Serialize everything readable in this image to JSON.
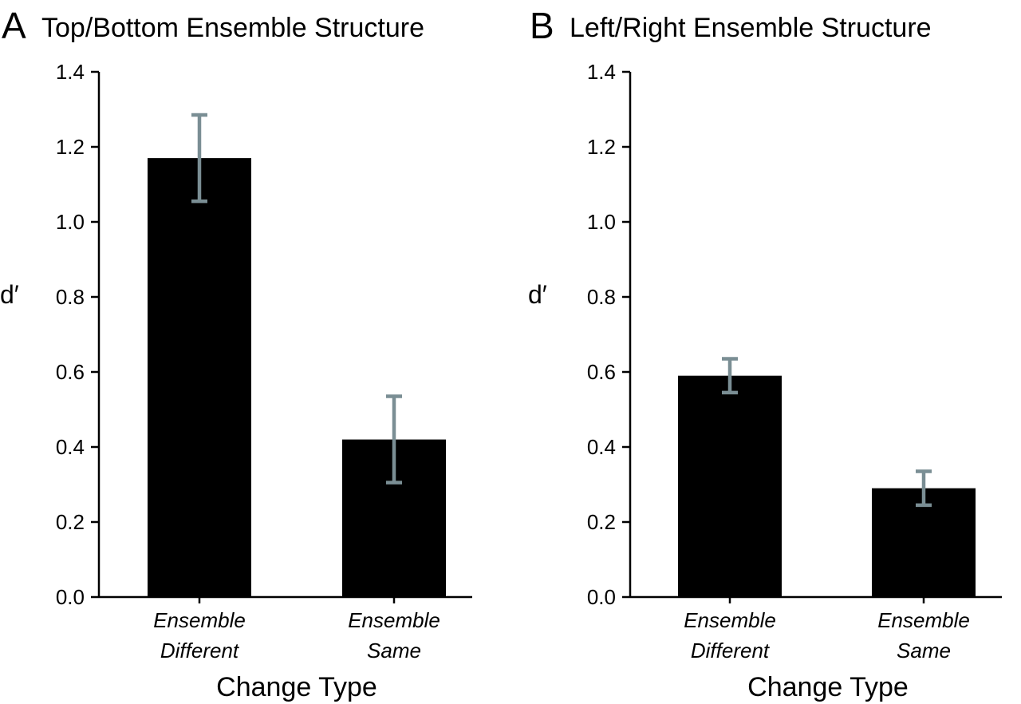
{
  "chart_data": [
    {
      "type": "bar",
      "panel": "A",
      "title": "Top/Bottom Ensemble Structure",
      "xlabel": "Change Type",
      "ylabel": "d′",
      "ylim": [
        0,
        1.4
      ],
      "yticks": [
        "0.0",
        "0.2",
        "0.4",
        "0.6",
        "0.8",
        "1.0",
        "1.2",
        "1.4"
      ],
      "categories": [
        {
          "line1": "Ensemble",
          "line2": "Different"
        },
        {
          "line1": "Ensemble",
          "line2": "Same"
        }
      ],
      "values": [
        1.17,
        0.42
      ],
      "error_low": [
        1.055,
        0.305
      ],
      "error_high": [
        1.285,
        0.535
      ],
      "bar_color": "#000000",
      "error_color": "#7a8e94",
      "grid": false,
      "legend": "none"
    },
    {
      "type": "bar",
      "panel": "B",
      "title": "Left/Right Ensemble Structure",
      "xlabel": "Change Type",
      "ylabel": "d′",
      "ylim": [
        0,
        1.4
      ],
      "yticks": [
        "0.0",
        "0.2",
        "0.4",
        "0.6",
        "0.8",
        "1.0",
        "1.2",
        "1.4"
      ],
      "categories": [
        {
          "line1": "Ensemble",
          "line2": "Different"
        },
        {
          "line1": "Ensemble",
          "line2": "Same"
        }
      ],
      "values": [
        0.59,
        0.29
      ],
      "error_low": [
        0.545,
        0.245
      ],
      "error_high": [
        0.635,
        0.335
      ],
      "bar_color": "#000000",
      "error_color": "#7a8e94",
      "grid": false,
      "legend": "none"
    }
  ]
}
